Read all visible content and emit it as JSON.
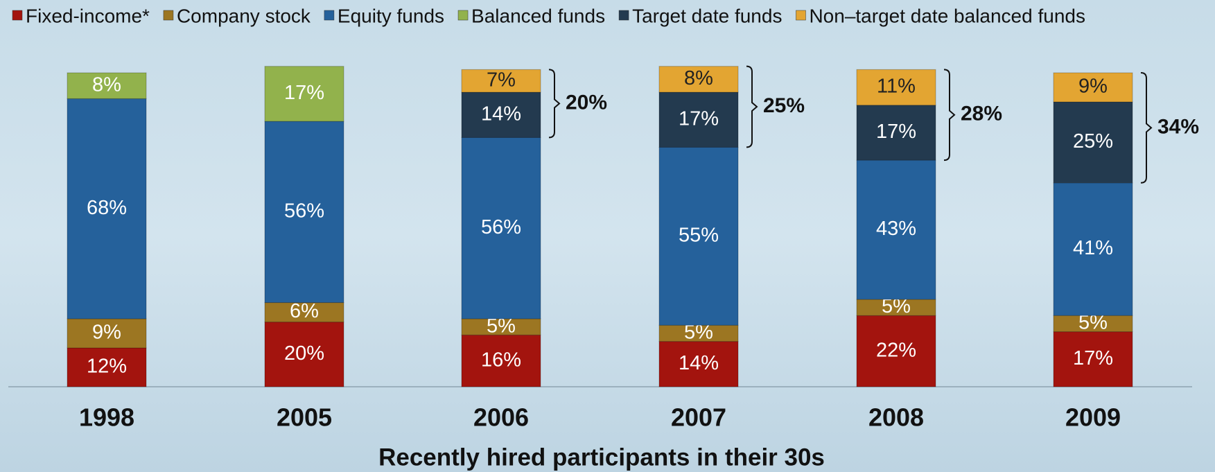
{
  "chart_data": {
    "type": "stacked_bar",
    "x_label": "Recently hired participants in their 30s",
    "categories": [
      "1998",
      "2005",
      "2006",
      "2007",
      "2008",
      "2009"
    ],
    "ylim": [
      0,
      100
    ],
    "legend": "top",
    "series": [
      {
        "name": "Fixed-income*",
        "color": "#a3140e",
        "label_color": "#ffffff",
        "values": [
          12,
          20,
          16,
          14,
          22,
          17
        ],
        "value_labels": [
          "12%",
          "20%",
          "16%",
          "14%",
          "22%",
          "17%"
        ]
      },
      {
        "name": "Company stock",
        "color": "#9c7622",
        "label_color": "#ffffff",
        "values": [
          9,
          6,
          5,
          5,
          5,
          5
        ],
        "value_labels": [
          "9%",
          "6%",
          "5%",
          "5%",
          "5%",
          "5%"
        ]
      },
      {
        "name": "Equity funds",
        "color": "#25619b",
        "label_color": "#ffffff",
        "values": [
          68,
          56,
          56,
          55,
          43,
          41
        ],
        "value_labels": [
          "68%",
          "56%",
          "56%",
          "55%",
          "43%",
          "41%"
        ]
      },
      {
        "name": "Balanced funds",
        "color": "#92b24c",
        "label_color": "#ffffff",
        "values": [
          8,
          17,
          null,
          null,
          null,
          null
        ],
        "value_labels": [
          "8%",
          "17%",
          null,
          null,
          null,
          null
        ]
      },
      {
        "name": "Target date funds",
        "color": "#233a4f",
        "label_color": "#ffffff",
        "values": [
          null,
          null,
          14,
          17,
          17,
          25
        ],
        "value_labels": [
          null,
          null,
          "14%",
          "17%",
          "17%",
          "25%"
        ]
      },
      {
        "name": "Non–target date balanced funds",
        "color": "#e3a532",
        "label_color": "#222222",
        "values": [
          null,
          null,
          7,
          8,
          11,
          9
        ],
        "value_labels": [
          null,
          null,
          "7%",
          "8%",
          "11%",
          "9%"
        ]
      }
    ],
    "brace_totals": {
      "values": [
        null,
        null,
        20,
        25,
        28,
        34
      ],
      "value_labels": [
        null,
        null,
        "20%",
        "25%",
        "28%",
        "34%"
      ]
    }
  }
}
